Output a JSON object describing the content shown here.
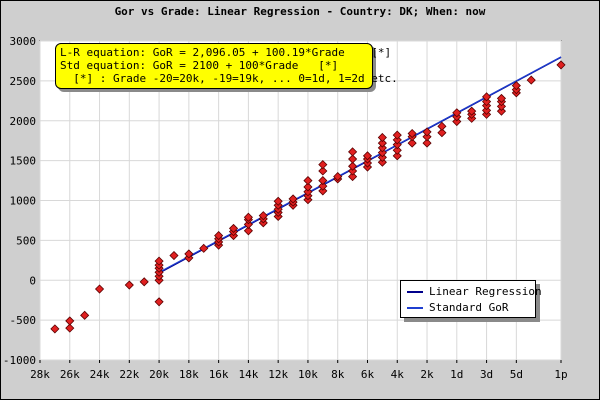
{
  "chart_data": {
    "type": "scatter",
    "title": "Gor vs Grade: Linear Regression - Country: DK; When: now",
    "xlabel": "",
    "ylabel": "",
    "ylim": [
      -1000,
      3000
    ],
    "yticks": [
      -1000,
      -500,
      0,
      500,
      1000,
      1500,
      2000,
      2500,
      3000
    ],
    "xlim": [
      -28,
      7
    ],
    "xticks": [
      {
        "value": -28,
        "label": "28k"
      },
      {
        "value": -26,
        "label": "26k"
      },
      {
        "value": -24,
        "label": "24k"
      },
      {
        "value": -22,
        "label": "22k"
      },
      {
        "value": -20,
        "label": "20k"
      },
      {
        "value": -18,
        "label": "18k"
      },
      {
        "value": -16,
        "label": "16k"
      },
      {
        "value": -14,
        "label": "14k"
      },
      {
        "value": -12,
        "label": "12k"
      },
      {
        "value": -10,
        "label": "10k"
      },
      {
        "value": -8,
        "label": "8k"
      },
      {
        "value": -6,
        "label": "6k"
      },
      {
        "value": -4,
        "label": "4k"
      },
      {
        "value": -2,
        "label": "2k"
      },
      {
        "value": 0,
        "label": "1d"
      },
      {
        "value": 2,
        "label": "3d"
      },
      {
        "value": 4,
        "label": "5d"
      },
      {
        "value": 7,
        "label": "1p"
      }
    ],
    "grid": true,
    "legend_position": "bottom-right",
    "colors": {
      "points": "#e02020",
      "regression": "#00008b",
      "standard": "#1f3fd0",
      "eq_box": "#ffff00"
    },
    "equations": [
      "L-R equation: GoR = 2,096.05 + 100.19*Grade    [*]",
      "Std equation: GoR = 2100 + 100*Grade   [*]",
      "  [*] : Grade -20=20k, -19=19k, ... 0=1d, 1=2d etc."
    ],
    "series": [
      {
        "name": "Linear Regression",
        "kind": "line",
        "intercept": 2096.05,
        "slope": 100.19
      },
      {
        "name": "Standard GoR",
        "kind": "line",
        "intercept": 2100,
        "slope": 100
      }
    ],
    "points": [
      [
        -27,
        -610
      ],
      [
        -26,
        -600
      ],
      [
        -26,
        -510
      ],
      [
        -25,
        -440
      ],
      [
        -24,
        -110
      ],
      [
        -22,
        -60
      ],
      [
        -21,
        -20
      ],
      [
        -20,
        -270
      ],
      [
        -20,
        0
      ],
      [
        -20,
        50
      ],
      [
        -20,
        100
      ],
      [
        -20,
        150
      ],
      [
        -20,
        190
      ],
      [
        -20,
        240
      ],
      [
        -19,
        310
      ],
      [
        -18,
        280
      ],
      [
        -18,
        330
      ],
      [
        -17,
        400
      ],
      [
        -16,
        440
      ],
      [
        -16,
        480
      ],
      [
        -16,
        520
      ],
      [
        -16,
        560
      ],
      [
        -15,
        560
      ],
      [
        -15,
        610
      ],
      [
        -15,
        650
      ],
      [
        -14,
        620
      ],
      [
        -14,
        700
      ],
      [
        -14,
        760
      ],
      [
        -14,
        790
      ],
      [
        -13,
        720
      ],
      [
        -13,
        770
      ],
      [
        -13,
        810
      ],
      [
        -12,
        800
      ],
      [
        -12,
        850
      ],
      [
        -12,
        890
      ],
      [
        -12,
        940
      ],
      [
        -12,
        990
      ],
      [
        -11,
        940
      ],
      [
        -11,
        980
      ],
      [
        -11,
        1020
      ],
      [
        -10,
        1010
      ],
      [
        -10,
        1060
      ],
      [
        -10,
        1110
      ],
      [
        -10,
        1170
      ],
      [
        -10,
        1250
      ],
      [
        -9,
        1120
      ],
      [
        -9,
        1180
      ],
      [
        -9,
        1250
      ],
      [
        -9,
        1370
      ],
      [
        -9,
        1450
      ],
      [
        -8,
        1270
      ],
      [
        -8,
        1300
      ],
      [
        -7,
        1300
      ],
      [
        -7,
        1370
      ],
      [
        -7,
        1430
      ],
      [
        -7,
        1520
      ],
      [
        -7,
        1610
      ],
      [
        -6,
        1420
      ],
      [
        -6,
        1470
      ],
      [
        -6,
        1520
      ],
      [
        -6,
        1560
      ],
      [
        -5,
        1480
      ],
      [
        -5,
        1540
      ],
      [
        -5,
        1600
      ],
      [
        -5,
        1660
      ],
      [
        -5,
        1720
      ],
      [
        -5,
        1790
      ],
      [
        -4,
        1560
      ],
      [
        -4,
        1630
      ],
      [
        -4,
        1700
      ],
      [
        -4,
        1760
      ],
      [
        -4,
        1820
      ],
      [
        -3,
        1720
      ],
      [
        -3,
        1800
      ],
      [
        -3,
        1840
      ],
      [
        -2,
        1720
      ],
      [
        -2,
        1800
      ],
      [
        -2,
        1860
      ],
      [
        -1,
        1850
      ],
      [
        -1,
        1930
      ],
      [
        0,
        1990
      ],
      [
        0,
        2050
      ],
      [
        0,
        2100
      ],
      [
        1,
        2030
      ],
      [
        1,
        2080
      ],
      [
        1,
        2120
      ],
      [
        2,
        2080
      ],
      [
        2,
        2130
      ],
      [
        2,
        2190
      ],
      [
        2,
        2240
      ],
      [
        2,
        2300
      ],
      [
        3,
        2120
      ],
      [
        3,
        2180
      ],
      [
        3,
        2240
      ],
      [
        3,
        2280
      ],
      [
        4,
        2350
      ],
      [
        4,
        2390
      ],
      [
        4,
        2440
      ],
      [
        5,
        2510
      ],
      [
        7,
        2700
      ]
    ]
  }
}
